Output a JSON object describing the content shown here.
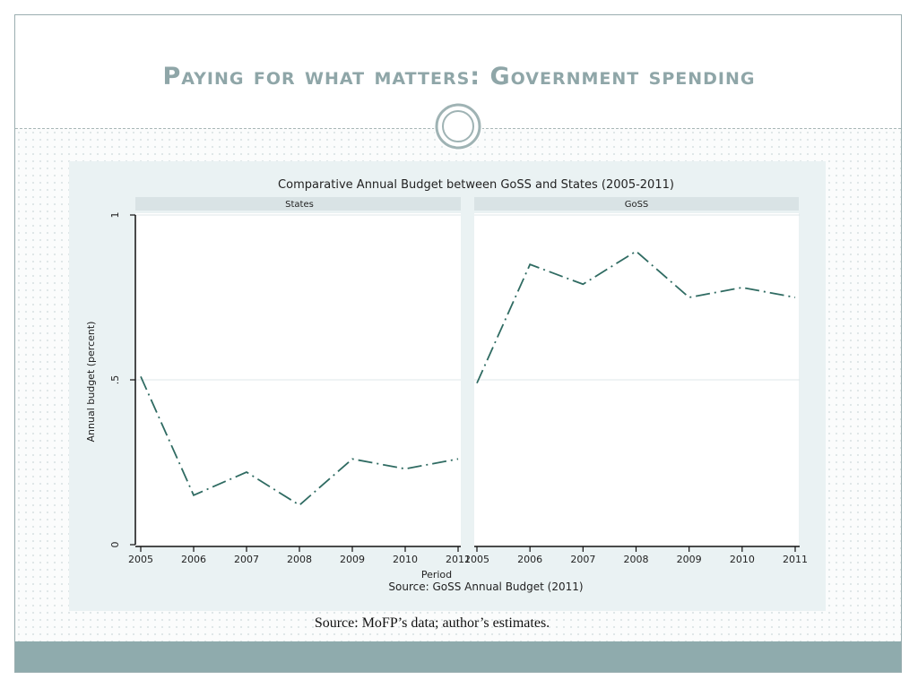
{
  "slide": {
    "title": "Paying for what matters: Government spending",
    "source_note": "Source: MoFP’s data; author’s estimates."
  },
  "colors": {
    "line": "#2f6b62",
    "title": "#8fa6a8",
    "footer": "#8fabad"
  },
  "chart_data": {
    "type": "line",
    "title": "Comparative Annual Budget between GoSS and States (2005-2011)",
    "xlabel": "Period",
    "ylabel": "Annual budget (percent)",
    "note": "Source: GoSS Annual Budget (2011)",
    "ylim": [
      0,
      1
    ],
    "yticks": [
      0,
      0.5,
      1
    ],
    "ytick_labels": [
      "0",
      ".5",
      "1"
    ],
    "x": [
      2005,
      2006,
      2007,
      2008,
      2009,
      2010,
      2011
    ],
    "x_labels": [
      "2005",
      "2006",
      "2007",
      "2008",
      "2009",
      "2010",
      "2011"
    ],
    "panels": [
      {
        "name": "States",
        "values": [
          0.51,
          0.15,
          0.22,
          0.12,
          0.26,
          0.23,
          0.26
        ]
      },
      {
        "name": "GoSS",
        "values": [
          0.49,
          0.85,
          0.79,
          0.89,
          0.75,
          0.78,
          0.75
        ]
      }
    ]
  }
}
